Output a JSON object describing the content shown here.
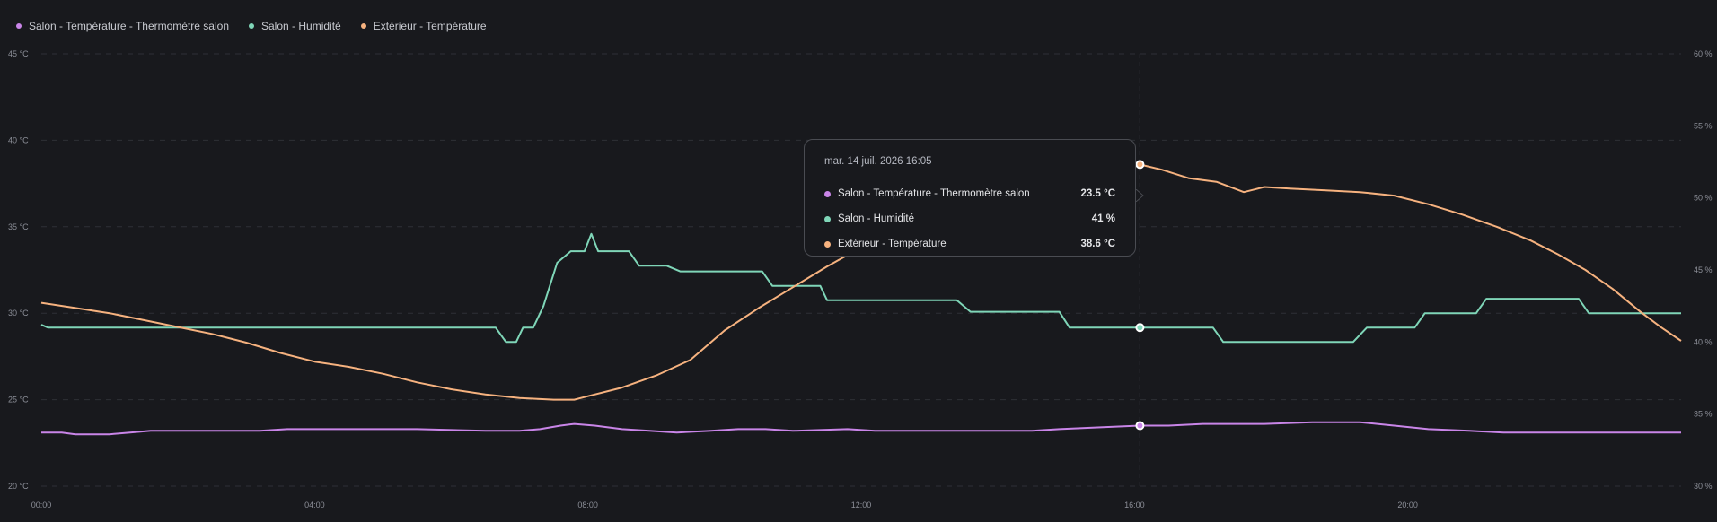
{
  "legend": {
    "items": [
      {
        "label": "Salon - Température - Thermomètre salon",
        "color": "#c985e8"
      },
      {
        "label": "Salon - Humidité",
        "color": "#7fd6b8"
      },
      {
        "label": "Extérieur - Température",
        "color": "#f6b27f"
      }
    ]
  },
  "tooltip": {
    "title": "mar. 14 juil. 2026 16:05",
    "rows": [
      {
        "label": "Salon - Température - Thermomètre salon",
        "value": "23.5 °C",
        "color": "#c985e8"
      },
      {
        "label": "Salon - Humidité",
        "value": "41 %",
        "color": "#7fd6b8"
      },
      {
        "label": "Extérieur - Température",
        "value": "38.6 °C",
        "color": "#f6b27f"
      }
    ]
  },
  "chart_data": {
    "type": "line",
    "x_range_hours": [
      0,
      24
    ],
    "x_ticks": [
      "00:00",
      "04:00",
      "08:00",
      "12:00",
      "16:00",
      "20:00"
    ],
    "y_left": {
      "ticks": [
        "20 °C",
        "25 °C",
        "30 °C",
        "35 °C",
        "40 °C",
        "45 °C"
      ],
      "range": [
        20,
        45
      ],
      "unit": "°C"
    },
    "y_right": {
      "ticks": [
        "30 %",
        "35 %",
        "40 %",
        "45 %",
        "50 %",
        "55 %",
        "60 %"
      ],
      "range": [
        30,
        60
      ],
      "unit": "%"
    },
    "grid": true,
    "legend_position": "top-left",
    "hover_x_hours": 16.08,
    "series": [
      {
        "name": "Salon - Température - Thermomètre salon",
        "axis": "left",
        "color": "#c985e8",
        "points": [
          [
            0,
            23.1
          ],
          [
            0.3,
            23.1
          ],
          [
            0.5,
            23.0
          ],
          [
            1.0,
            23.0
          ],
          [
            1.3,
            23.1
          ],
          [
            1.6,
            23.2
          ],
          [
            2.2,
            23.2
          ],
          [
            3.2,
            23.2
          ],
          [
            3.6,
            23.3
          ],
          [
            4.5,
            23.3
          ],
          [
            5.5,
            23.3
          ],
          [
            6.5,
            23.2
          ],
          [
            7.0,
            23.2
          ],
          [
            7.3,
            23.3
          ],
          [
            7.6,
            23.5
          ],
          [
            7.8,
            23.6
          ],
          [
            8.1,
            23.5
          ],
          [
            8.5,
            23.3
          ],
          [
            8.9,
            23.2
          ],
          [
            9.3,
            23.1
          ],
          [
            9.8,
            23.2
          ],
          [
            10.2,
            23.3
          ],
          [
            10.6,
            23.3
          ],
          [
            11.0,
            23.2
          ],
          [
            11.8,
            23.3
          ],
          [
            12.2,
            23.2
          ],
          [
            13.4,
            23.2
          ],
          [
            14.0,
            23.2
          ],
          [
            14.5,
            23.2
          ],
          [
            14.9,
            23.3
          ],
          [
            15.5,
            23.4
          ],
          [
            16.08,
            23.5
          ],
          [
            16.5,
            23.5
          ],
          [
            17.0,
            23.6
          ],
          [
            17.9,
            23.6
          ],
          [
            18.6,
            23.7
          ],
          [
            19.3,
            23.7
          ],
          [
            19.8,
            23.5
          ],
          [
            20.3,
            23.3
          ],
          [
            20.9,
            23.2
          ],
          [
            21.4,
            23.1
          ],
          [
            22.0,
            23.1
          ],
          [
            22.6,
            23.1
          ],
          [
            23.2,
            23.1
          ],
          [
            24.0,
            23.1
          ]
        ]
      },
      {
        "name": "Salon - Humidité",
        "axis": "right",
        "color": "#7fd6b8",
        "points": [
          [
            0,
            41.2
          ],
          [
            0.1,
            41
          ],
          [
            1.0,
            41
          ],
          [
            3.0,
            41
          ],
          [
            5.0,
            41
          ],
          [
            6.65,
            41
          ],
          [
            6.8,
            40
          ],
          [
            6.95,
            40
          ],
          [
            7.05,
            41
          ],
          [
            7.2,
            41
          ],
          [
            7.35,
            42.5
          ],
          [
            7.55,
            45.5
          ],
          [
            7.75,
            46.3
          ],
          [
            7.95,
            46.3
          ],
          [
            8.05,
            47.5
          ],
          [
            8.15,
            46.3
          ],
          [
            8.6,
            46.3
          ],
          [
            8.75,
            45.3
          ],
          [
            9.15,
            45.3
          ],
          [
            9.35,
            44.9
          ],
          [
            10.55,
            44.9
          ],
          [
            10.7,
            43.9
          ],
          [
            11.4,
            43.9
          ],
          [
            11.5,
            42.9
          ],
          [
            12.6,
            42.9
          ],
          [
            13.4,
            42.9
          ],
          [
            13.6,
            42.1
          ],
          [
            14.9,
            42.1
          ],
          [
            15.05,
            41
          ],
          [
            16.08,
            41
          ],
          [
            17.15,
            41
          ],
          [
            17.3,
            40
          ],
          [
            19.2,
            40
          ],
          [
            19.4,
            41
          ],
          [
            20.1,
            41
          ],
          [
            20.25,
            42
          ],
          [
            21.0,
            42
          ],
          [
            21.15,
            43
          ],
          [
            22.5,
            43
          ],
          [
            22.65,
            42
          ],
          [
            24.0,
            42
          ]
        ]
      },
      {
        "name": "Extérieur - Température",
        "axis": "left",
        "color": "#f6b27f",
        "points": [
          [
            0,
            30.6
          ],
          [
            0.5,
            30.3
          ],
          [
            1.0,
            30.0
          ],
          [
            1.5,
            29.6
          ],
          [
            2.0,
            29.2
          ],
          [
            2.5,
            28.8
          ],
          [
            3.0,
            28.3
          ],
          [
            3.5,
            27.7
          ],
          [
            4.0,
            27.2
          ],
          [
            4.5,
            26.9
          ],
          [
            5.0,
            26.5
          ],
          [
            5.5,
            26.0
          ],
          [
            6.0,
            25.6
          ],
          [
            6.5,
            25.3
          ],
          [
            7.0,
            25.1
          ],
          [
            7.5,
            25.0
          ],
          [
            7.8,
            25.0
          ],
          [
            8.0,
            25.2
          ],
          [
            8.5,
            25.7
          ],
          [
            9.0,
            26.4
          ],
          [
            9.5,
            27.3
          ],
          [
            10.0,
            29.0
          ],
          [
            10.5,
            30.3
          ],
          [
            11.0,
            31.5
          ],
          [
            11.5,
            32.7
          ],
          [
            12.0,
            33.8
          ],
          [
            12.5,
            34.5
          ],
          [
            13.0,
            35.2
          ],
          [
            13.5,
            36.2
          ],
          [
            14.0,
            37.0
          ],
          [
            14.5,
            37.6
          ],
          [
            15.0,
            38.0
          ],
          [
            15.5,
            38.3
          ],
          [
            16.08,
            38.6
          ],
          [
            16.4,
            38.3
          ],
          [
            16.8,
            37.8
          ],
          [
            17.2,
            37.6
          ],
          [
            17.6,
            37.0
          ],
          [
            17.9,
            37.3
          ],
          [
            18.3,
            37.2
          ],
          [
            18.8,
            37.1
          ],
          [
            19.3,
            37.0
          ],
          [
            19.8,
            36.8
          ],
          [
            20.3,
            36.3
          ],
          [
            20.8,
            35.7
          ],
          [
            21.3,
            35.0
          ],
          [
            21.8,
            34.2
          ],
          [
            22.2,
            33.4
          ],
          [
            22.6,
            32.5
          ],
          [
            23.0,
            31.4
          ],
          [
            23.4,
            30.1
          ],
          [
            23.7,
            29.2
          ],
          [
            24.0,
            28.4
          ]
        ]
      }
    ]
  }
}
